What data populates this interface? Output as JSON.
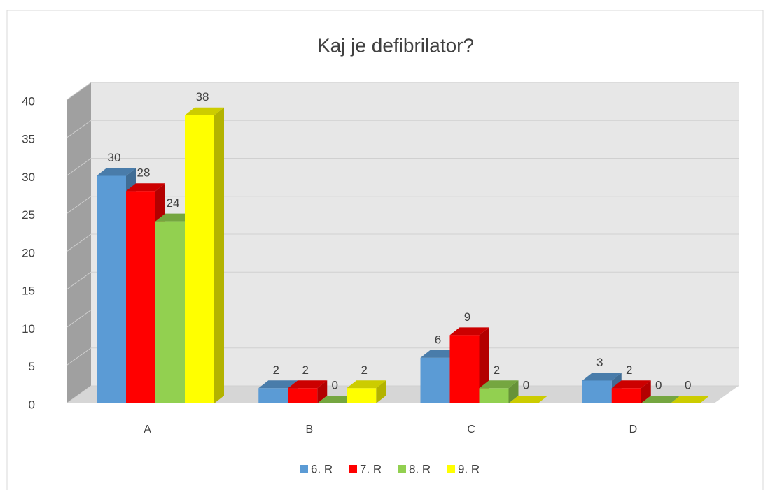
{
  "chart_data": {
    "type": "bar3d",
    "title": "Kaj je defibrilator?",
    "categories": [
      "A",
      "B",
      "C",
      "D"
    ],
    "series": [
      {
        "name": "6. R",
        "color": "#5b9bd5",
        "values": [
          30,
          2,
          6,
          3
        ]
      },
      {
        "name": "7. R",
        "color": "#ff0000",
        "values": [
          28,
          2,
          9,
          2
        ]
      },
      {
        "name": "8. R",
        "color": "#92d050",
        "values": [
          24,
          0,
          2,
          0
        ]
      },
      {
        "name": "9. R",
        "color": "#ffff00",
        "values": [
          38,
          2,
          0,
          0
        ]
      }
    ],
    "ylim": [
      0,
      40
    ],
    "yticks": [
      0,
      5,
      10,
      15,
      20,
      25,
      30,
      35,
      40
    ],
    "grid": true,
    "legend": "bottom"
  }
}
